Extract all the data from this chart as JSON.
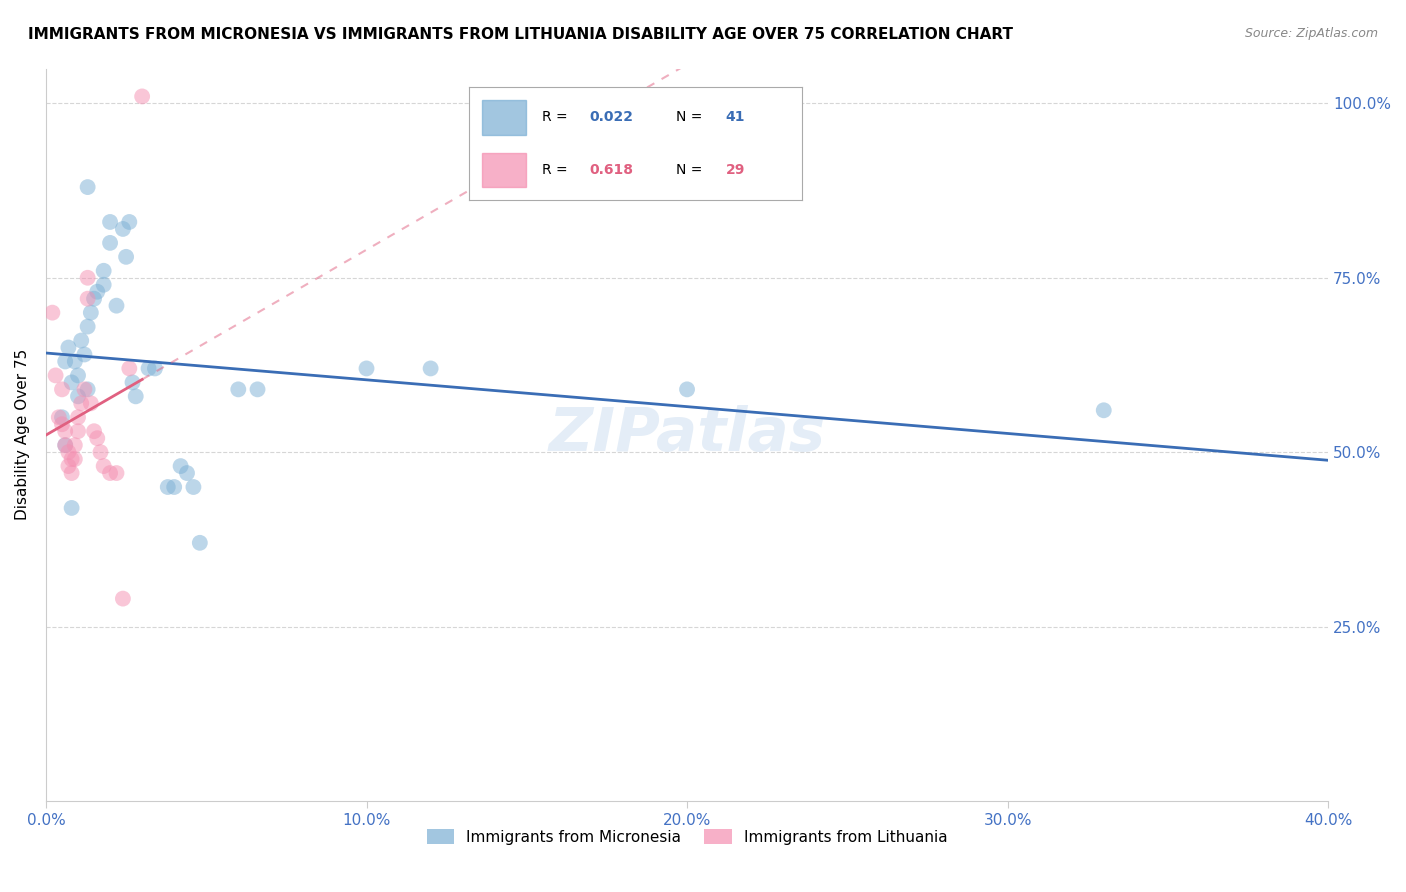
{
  "title": "IMMIGRANTS FROM MICRONESIA VS IMMIGRANTS FROM LITHUANIA DISABILITY AGE OVER 75 CORRELATION CHART",
  "source": "Source: ZipAtlas.com",
  "ylabel": "Disability Age Over 75",
  "watermark": "ZIPatlas",
  "micronesia_scatter": [
    [
      0.006,
      0.63
    ],
    [
      0.007,
      0.65
    ],
    [
      0.008,
      0.6
    ],
    [
      0.009,
      0.63
    ],
    [
      0.01,
      0.61
    ],
    [
      0.01,
      0.58
    ],
    [
      0.011,
      0.66
    ],
    [
      0.012,
      0.64
    ],
    [
      0.013,
      0.68
    ],
    [
      0.013,
      0.59
    ],
    [
      0.014,
      0.7
    ],
    [
      0.015,
      0.72
    ],
    [
      0.016,
      0.73
    ],
    [
      0.018,
      0.76
    ],
    [
      0.018,
      0.74
    ],
    [
      0.02,
      0.8
    ],
    [
      0.02,
      0.83
    ],
    [
      0.022,
      0.71
    ],
    [
      0.024,
      0.82
    ],
    [
      0.025,
      0.78
    ],
    [
      0.026,
      0.83
    ],
    [
      0.027,
      0.6
    ],
    [
      0.028,
      0.58
    ],
    [
      0.032,
      0.62
    ],
    [
      0.034,
      0.62
    ],
    [
      0.038,
      0.45
    ],
    [
      0.04,
      0.45
    ],
    [
      0.042,
      0.48
    ],
    [
      0.044,
      0.47
    ],
    [
      0.046,
      0.45
    ],
    [
      0.048,
      0.37
    ],
    [
      0.06,
      0.59
    ],
    [
      0.066,
      0.59
    ],
    [
      0.1,
      0.62
    ],
    [
      0.12,
      0.62
    ],
    [
      0.2,
      0.59
    ],
    [
      0.33,
      0.56
    ],
    [
      0.005,
      0.55
    ],
    [
      0.006,
      0.51
    ],
    [
      0.008,
      0.42
    ],
    [
      0.013,
      0.88
    ]
  ],
  "lithuania_scatter": [
    [
      0.002,
      0.7
    ],
    [
      0.003,
      0.61
    ],
    [
      0.004,
      0.55
    ],
    [
      0.005,
      0.59
    ],
    [
      0.005,
      0.54
    ],
    [
      0.006,
      0.53
    ],
    [
      0.006,
      0.51
    ],
    [
      0.007,
      0.5
    ],
    [
      0.007,
      0.48
    ],
    [
      0.008,
      0.49
    ],
    [
      0.008,
      0.47
    ],
    [
      0.009,
      0.49
    ],
    [
      0.009,
      0.51
    ],
    [
      0.01,
      0.55
    ],
    [
      0.01,
      0.53
    ],
    [
      0.011,
      0.57
    ],
    [
      0.012,
      0.59
    ],
    [
      0.013,
      0.72
    ],
    [
      0.013,
      0.75
    ],
    [
      0.014,
      0.57
    ],
    [
      0.015,
      0.53
    ],
    [
      0.016,
      0.52
    ],
    [
      0.017,
      0.5
    ],
    [
      0.018,
      0.48
    ],
    [
      0.02,
      0.47
    ],
    [
      0.022,
      0.47
    ],
    [
      0.024,
      0.29
    ],
    [
      0.03,
      1.01
    ],
    [
      0.026,
      0.62
    ]
  ],
  "micronesia_color": "#7bafd4",
  "lithuania_color": "#f48fb1",
  "micronesia_line_color": "#3a6db5",
  "lithuania_line_color": "#e06080",
  "scatter_alpha": 0.5,
  "scatter_size": 130,
  "xlim": [
    0.0,
    0.4
  ],
  "ylim": [
    0.0,
    1.05
  ],
  "xticks": [
    0.0,
    0.1,
    0.2,
    0.3,
    0.4
  ],
  "yticks": [
    0.25,
    0.5,
    0.75,
    1.0
  ]
}
